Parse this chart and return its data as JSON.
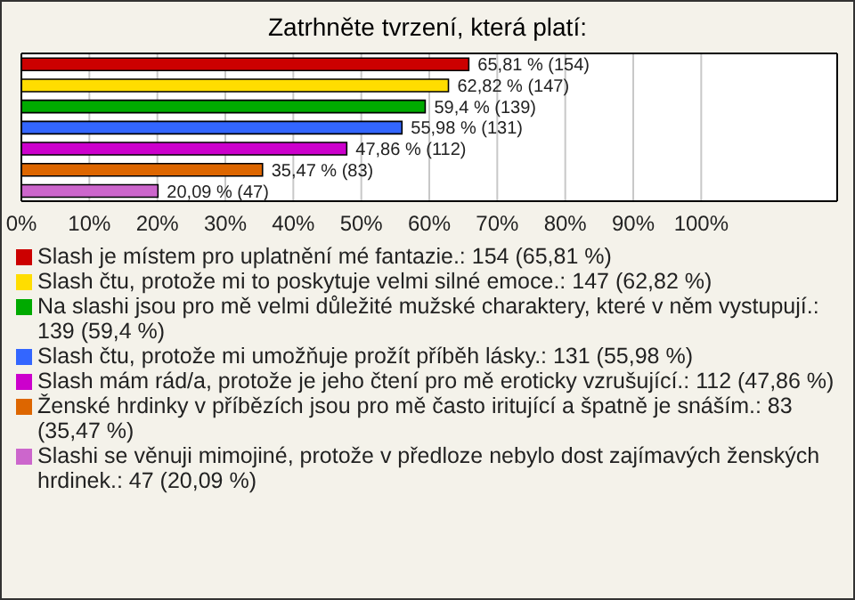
{
  "chart_data": {
    "type": "bar",
    "orientation": "horizontal",
    "stacked": true,
    "title": "Zatrhněte tvrzení, která platí:",
    "categories": [
      null,
      null,
      null,
      null,
      null,
      null,
      null
    ],
    "series": [
      {
        "name": "Slash je místem pro uplatnění mé fantazie.: 154 (65,81 %)",
        "color": "#cc0000",
        "values": [
          65.81,
          null,
          null,
          null,
          null,
          null,
          null
        ],
        "value_labels": [
          "65,81 % (154)",
          null,
          null,
          null,
          null,
          null,
          null
        ]
      },
      {
        "name": "Slash čtu, protože mi to poskytuje velmi silné emoce.: 147 (62,82 %)",
        "color": "#ffdd00",
        "values": [
          null,
          62.82,
          null,
          null,
          null,
          null,
          null
        ],
        "value_labels": [
          null,
          "62,82 % (147)",
          null,
          null,
          null,
          null,
          null
        ]
      },
      {
        "name": "Na slashi jsou pro mě velmi důležité mužské charaktery, které v něm vystupují.: 139 (59,4 %)",
        "color": "#00aa00",
        "values": [
          null,
          null,
          59.4,
          null,
          null,
          null,
          null
        ],
        "value_labels": [
          null,
          null,
          "59,4 % (139)",
          null,
          null,
          null,
          null
        ]
      },
      {
        "name": "Slash čtu, protože mi umožňuje prožít příběh lásky.: 131 (55,98 %)",
        "color": "#3366ff",
        "values": [
          null,
          null,
          null,
          55.98,
          null,
          null,
          null
        ],
        "value_labels": [
          null,
          null,
          null,
          "55,98 % (131)",
          null,
          null,
          null
        ]
      },
      {
        "name": "Slash mám rád/a, protože je jeho čtení pro mě eroticky vzrušující.: 112 (47,86 %)",
        "color": "#cc00cc",
        "values": [
          null,
          null,
          null,
          null,
          47.86,
          null,
          null
        ],
        "value_labels": [
          null,
          null,
          null,
          null,
          "47,86 % (112)",
          null,
          null
        ]
      },
      {
        "name": "Ženské hrdinky v příbězích jsou pro mě často iritující a špatně je snáším.: 83 (35,47 %)",
        "color": "#dd6600",
        "values": [
          null,
          null,
          null,
          null,
          null,
          35.47,
          null
        ],
        "value_labels": [
          null,
          null,
          null,
          null,
          null,
          "35,47 % (83)",
          null
        ]
      },
      {
        "name": "Slashi se věnuji mimojiné, protože v předloze nebylo dost zajímavých ženských hrdinek.: 47 (20,09 %)",
        "color": "#cc66cc",
        "values": [
          null,
          null,
          null,
          null,
          null,
          null,
          20.09
        ],
        "value_labels": [
          null,
          null,
          null,
          null,
          null,
          null,
          "20,09 % (47)"
        ]
      }
    ],
    "xlim": [
      0,
      120
    ],
    "xticks": [
      {
        "value": 0,
        "label": "0%"
      },
      {
        "value": 10,
        "label": "10%"
      },
      {
        "value": 20,
        "label": "20%"
      },
      {
        "value": 30,
        "label": "30%"
      },
      {
        "value": 40,
        "label": "40%"
      },
      {
        "value": 50,
        "label": "50%"
      },
      {
        "value": 60,
        "label": "60%"
      },
      {
        "value": 70,
        "label": "70%"
      },
      {
        "value": 80,
        "label": "80%"
      },
      {
        "value": 90,
        "label": "90%"
      },
      {
        "value": 100,
        "label": "100%"
      },
      {
        "value": 120,
        "label": null
      }
    ],
    "grid": "x",
    "tick_labels": "x",
    "legend": "bottom"
  }
}
